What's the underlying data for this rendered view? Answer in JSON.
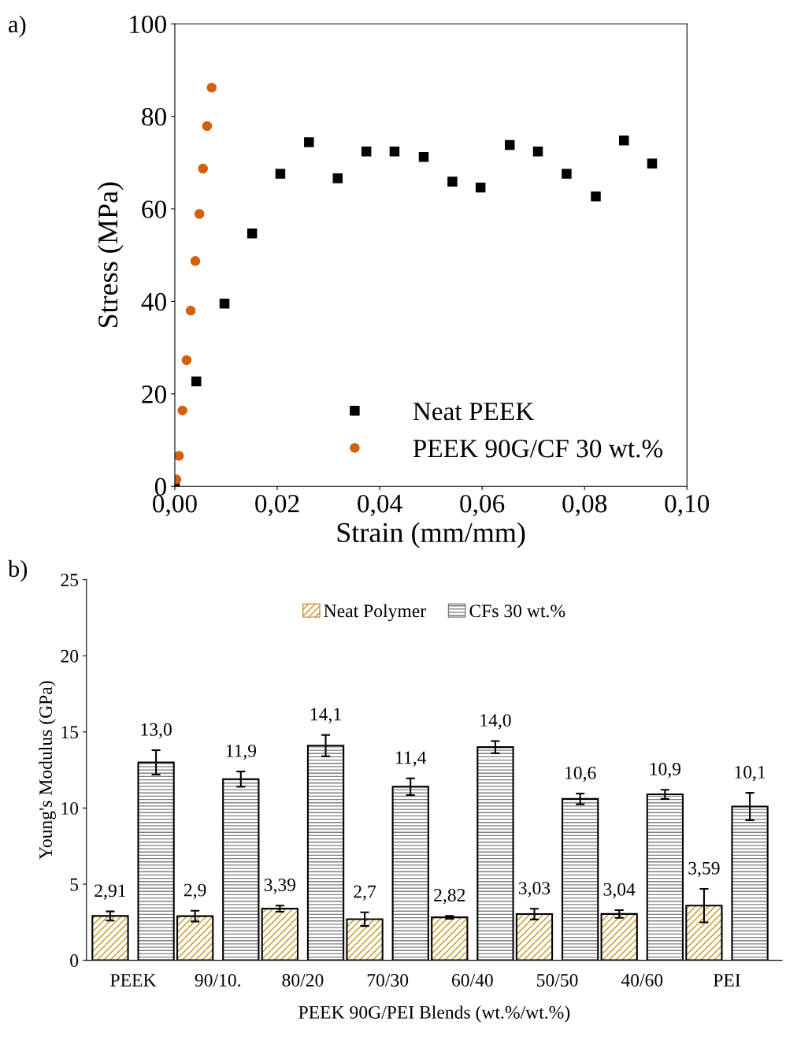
{
  "chart_data": [
    {
      "type": "scatter",
      "xlabel": "Strain (mm/mm)",
      "ylabel": "Stress (MPa)",
      "annotations": [
        "a)"
      ],
      "xlim": [
        0,
        0.1
      ],
      "xticks": [
        {
          "value": 0,
          "label": "0,00"
        },
        {
          "value": 0.02,
          "label": "0,02"
        },
        {
          "value": 0.04,
          "label": "0,04"
        },
        {
          "value": 0.06,
          "label": "0,06"
        },
        {
          "value": 0.08,
          "label": "0,08"
        },
        {
          "value": 0.1,
          "label": "0,10"
        }
      ],
      "ylim": [
        0,
        100
      ],
      "yticks": [
        0,
        20,
        40,
        60,
        80,
        100
      ],
      "legend": "bottom right",
      "grid": false,
      "series": [
        {
          "name": "Neat PEEK",
          "color": "#000000",
          "marker": "square",
          "x": [
            0,
            0.0042,
            0.0097,
            0.0151,
            0.0206,
            0.0262,
            0.0318,
            0.0374,
            0.0429,
            0.0486,
            0.0542,
            0.0597,
            0.0654,
            0.0709,
            0.0765,
            0.0822,
            0.0877,
            0.0932
          ],
          "values": [
            0,
            22.7,
            39.5,
            54.7,
            67.6,
            74.4,
            66.6,
            72.4,
            72.4,
            71.2,
            65.9,
            64.6,
            73.8,
            72.4,
            67.6,
            62.7,
            74.8,
            69.8
          ]
        },
        {
          "name": "PEEK 90G/CF 30 wt.%",
          "color": "#d2600f",
          "marker": "circle",
          "x": [
            0.0003,
            0.0008,
            0.0015,
            0.0023,
            0.0031,
            0.004,
            0.0048,
            0.0055,
            0.0063,
            0.0072
          ],
          "values": [
            1.5,
            6.6,
            16.4,
            27.3,
            38.0,
            48.7,
            58.9,
            68.7,
            77.9,
            86.2
          ]
        }
      ]
    },
    {
      "type": "bar",
      "xlabel": "PEEK 90G/PEI Blends (wt.%/wt.%)",
      "ylabel": "Young's Modulus (GPa)",
      "annotations": [
        "b)"
      ],
      "categories": [
        "PEEK",
        "90/10.",
        "80/20",
        "70/30",
        "60/40",
        "50/50",
        "40/60",
        "PEI"
      ],
      "ylim": [
        0,
        25
      ],
      "yticks": [
        0,
        5,
        10,
        15,
        20,
        25
      ],
      "legend": "top",
      "grid": false,
      "series": [
        {
          "name": "Neat Polymer",
          "color": "#c8961e",
          "values": [
            2.91,
            2.9,
            3.39,
            2.7,
            2.82,
            3.03,
            3.04,
            3.59
          ],
          "errors": [
            0.3,
            0.35,
            0.2,
            0.45,
            0.1,
            0.35,
            0.25,
            1.1
          ],
          "value_labels": [
            "2,91",
            "2,9",
            "3,39",
            "2,7",
            "2,82",
            "3,03",
            "3,04",
            "3,59"
          ]
        },
        {
          "name": "CFs 30 wt.%",
          "color": "#808080",
          "values": [
            13.0,
            11.9,
            14.1,
            11.4,
            14.0,
            10.6,
            10.9,
            10.1
          ],
          "errors": [
            0.8,
            0.5,
            0.7,
            0.55,
            0.4,
            0.35,
            0.3,
            0.9
          ],
          "value_labels": [
            "13,0",
            "11,9",
            "14,1",
            "11,4",
            "14,0",
            "10,6",
            "10,9",
            "10,1"
          ]
        }
      ]
    }
  ]
}
